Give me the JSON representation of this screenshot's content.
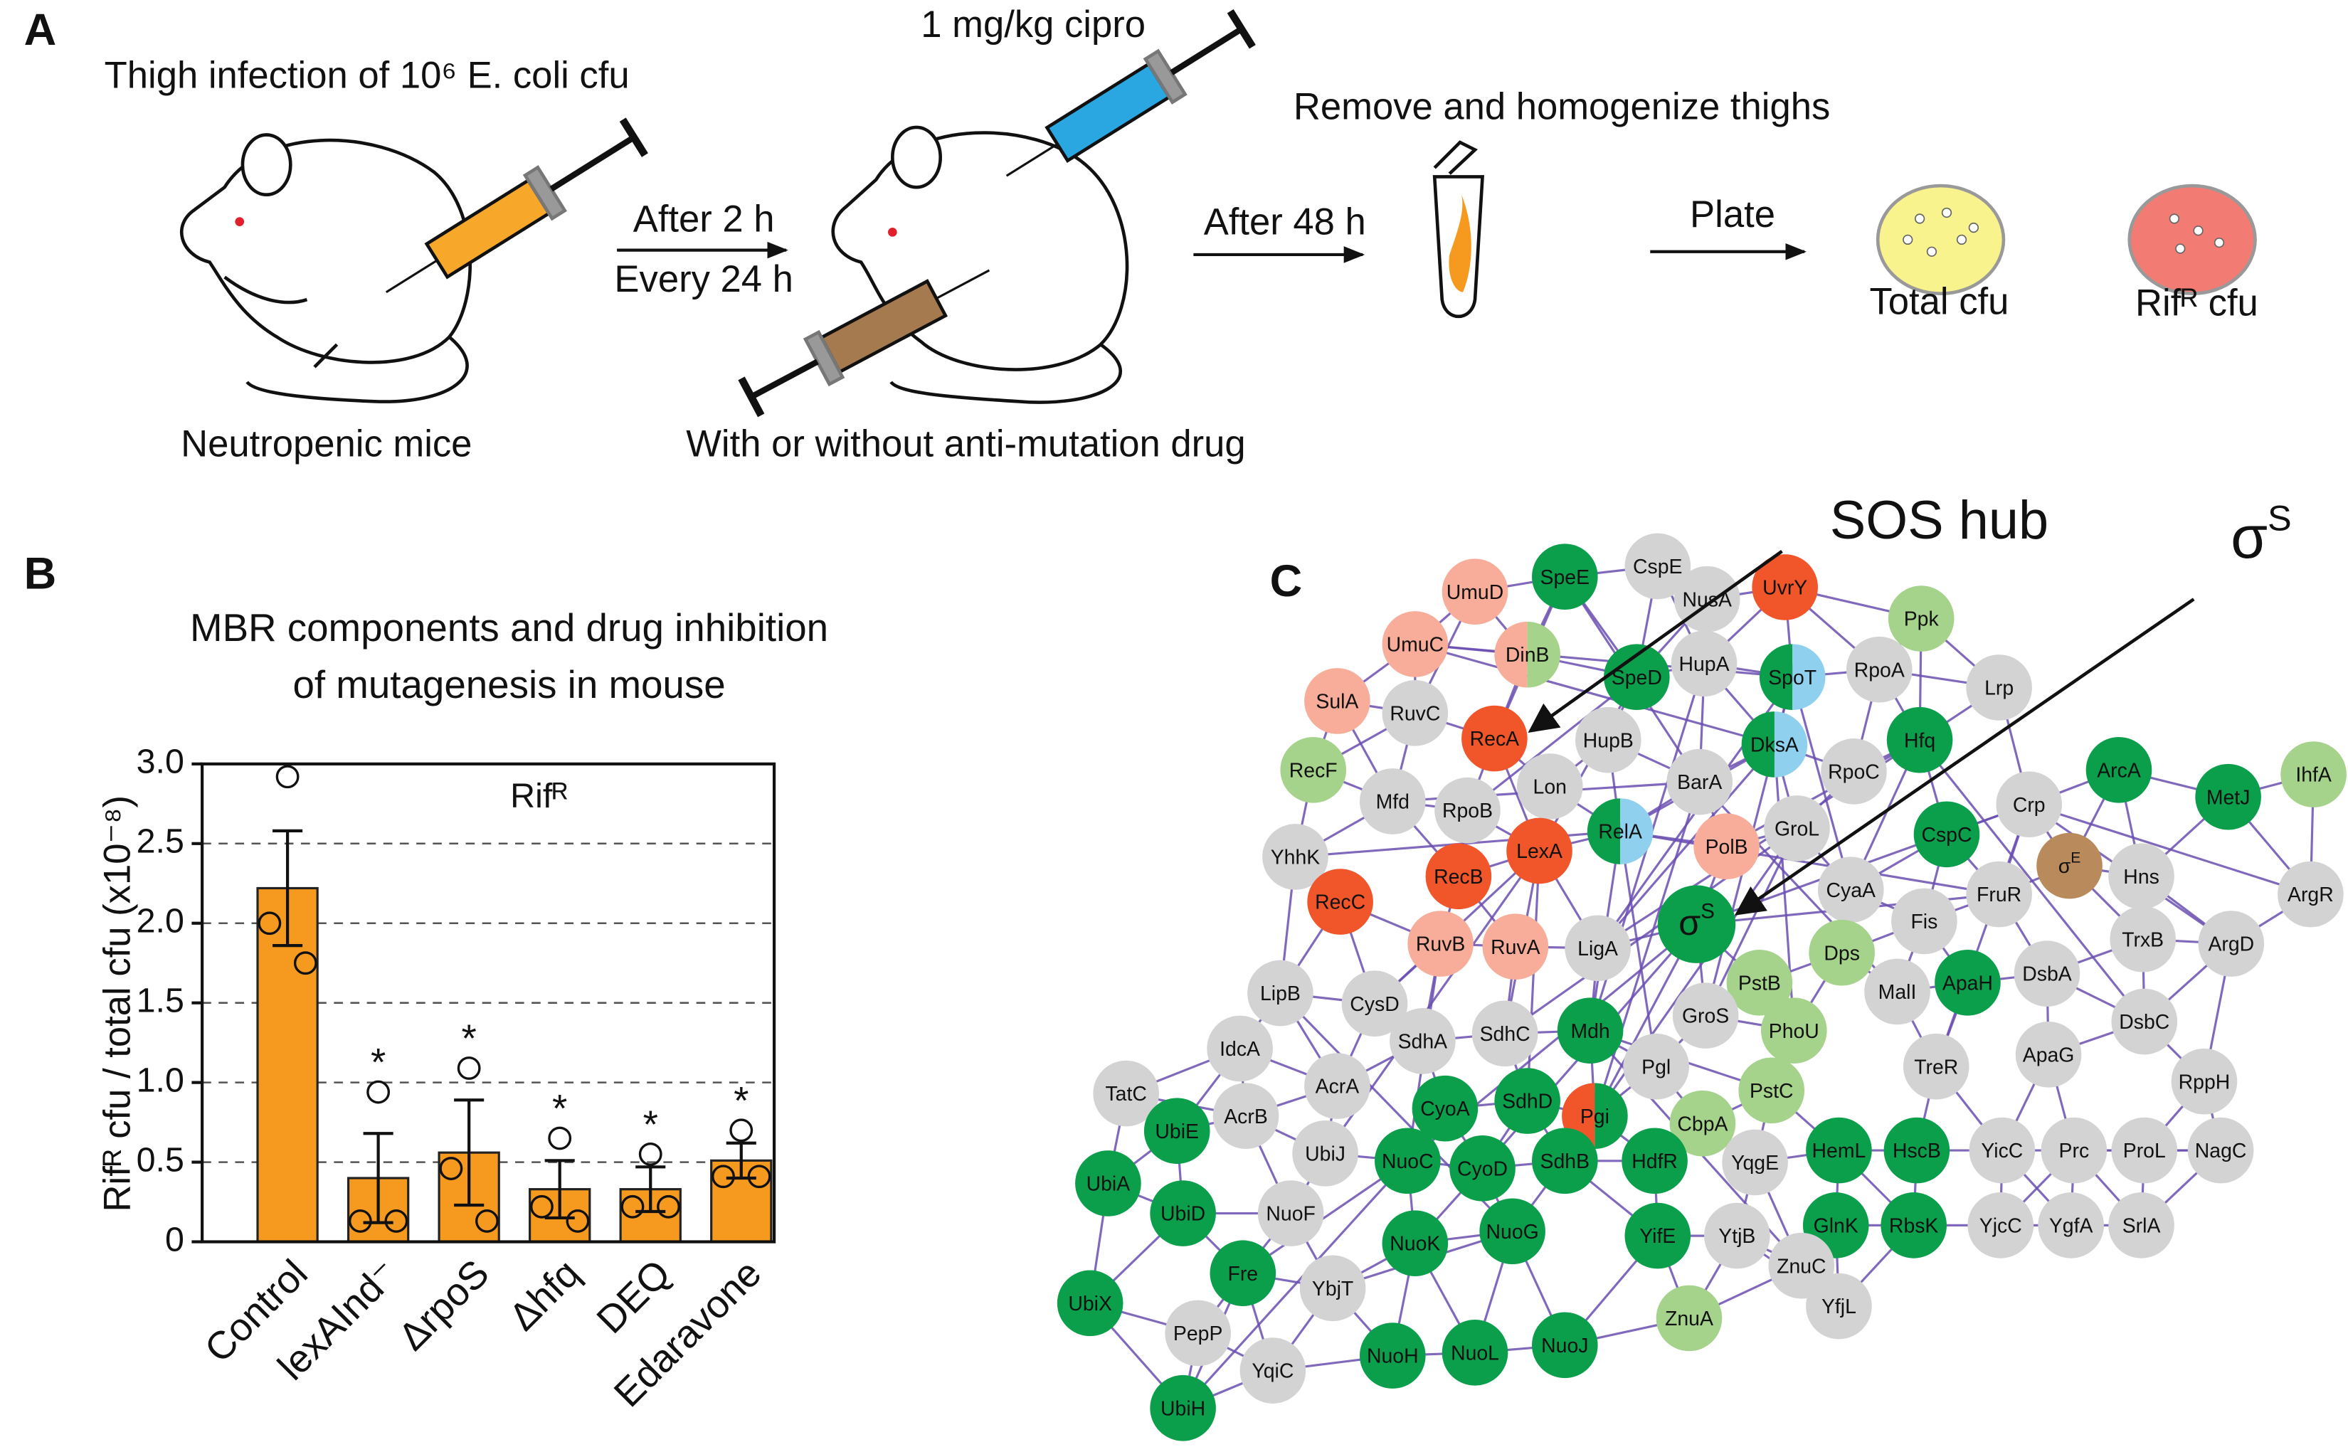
{
  "panel_a": {
    "label": "A",
    "infection": "Thigh infection of 10⁶ E. coli cfu",
    "dose": "1 mg/kg cipro",
    "step1_top": "After 2 h",
    "step1_bottom": "Every 24 h",
    "step2": "After 48 h",
    "homogenize": "Remove and homogenize thighs",
    "plate": "Plate",
    "total": "Total cfu",
    "rifr": "Rifᴿ cfu",
    "mice": "Neutropenic mice",
    "drug": "With or without anti-mutation drug"
  },
  "chart_data": {
    "type": "bar",
    "panel_label": "B",
    "title": [
      "MBR components and drug inhibition",
      "of mutagenesis in mouse"
    ],
    "inner_label": "Rifᴿ",
    "y_label": "Rifᴿ cfu / total cfu (x10⁻⁸)",
    "categories": [
      "Control",
      "lexAInd⁻",
      "ΔrpoS",
      "Δhfq",
      "DEQ",
      "Edaravone"
    ],
    "values": [
      2.22,
      0.4,
      0.56,
      0.33,
      0.33,
      0.51
    ],
    "errors": [
      0.36,
      0.28,
      0.33,
      0.18,
      0.14,
      0.11
    ],
    "points": [
      [
        2.92,
        2.0,
        1.75
      ],
      [
        0.94,
        0.13,
        0.13
      ],
      [
        1.09,
        0.46,
        0.13
      ],
      [
        0.65,
        0.22,
        0.13
      ],
      [
        0.55,
        0.22,
        0.22
      ],
      [
        0.7,
        0.41,
        0.41
      ]
    ],
    "significance": [
      null,
      "*",
      "*",
      "*",
      "*",
      "*"
    ],
    "color": "#f5991f",
    "ylim": [
      0,
      3
    ],
    "yticks": [
      0,
      0.5,
      {
        "value": 1,
        "label": "1.0"
      },
      1.5,
      {
        "value": 2,
        "label": "2.0"
      },
      2.5,
      {
        "value": 3,
        "label": "3.0"
      }
    ],
    "grid": true
  },
  "network": {
    "label": "C",
    "sos_hub": "SOS hub",
    "sigma_s": {
      "text": "σ",
      "sup": "S"
    },
    "nodes": [
      {
        "label": "SpeE",
        "color": "#0b9e4b"
      },
      {
        "label": "CspE",
        "color": "#d3d3d3"
      },
      {
        "label": "NusA",
        "color": "#d3d3d3"
      },
      {
        "label": "UvrY",
        "color": "#f0562a"
      },
      {
        "label": "Ppk",
        "color": "#a5d38b"
      },
      {
        "label": "UmuD",
        "color": "#f7ad9a"
      },
      {
        "label": "UmuC",
        "color": "#f7ad9a"
      },
      {
        "label": "DinB",
        "color": "#f7ad9a",
        "color2": "#a5d38b"
      },
      {
        "label": "HupA",
        "color": "#d3d3d3"
      },
      {
        "label": "SpoT",
        "color": "#0b9e4b",
        "color2": "#8fd0ee"
      },
      {
        "label": "RpoA",
        "color": "#d3d3d3"
      },
      {
        "label": "SulA",
        "color": "#f7ad9a"
      },
      {
        "label": "RuvC",
        "color": "#d3d3d3"
      },
      {
        "label": "SpeD",
        "color": "#0b9e4b"
      },
      {
        "label": "Lrp",
        "color": "#d3d3d3"
      },
      {
        "label": "RecA",
        "color": "#f0562a"
      },
      {
        "label": "HupB",
        "color": "#d3d3d3"
      },
      {
        "label": "DksA",
        "color": "#0b9e4b",
        "color2": "#8fd0ee"
      },
      {
        "label": "Hfq",
        "color": "#0b9e4b"
      },
      {
        "label": "RpoC",
        "color": "#d3d3d3"
      },
      {
        "label": "RecF",
        "color": "#a5d38b"
      },
      {
        "label": "Mfd",
        "color": "#d3d3d3"
      },
      {
        "label": "RpoB",
        "color": "#d3d3d3"
      },
      {
        "label": "Lon",
        "color": "#d3d3d3"
      },
      {
        "label": "BarA",
        "color": "#d3d3d3"
      },
      {
        "label": "ArcA",
        "color": "#0b9e4b"
      },
      {
        "label": "MetJ",
        "color": "#0b9e4b"
      },
      {
        "label": "IhfA",
        "color": "#a5d38b"
      },
      {
        "label": "Crp",
        "color": "#d3d3d3"
      },
      {
        "label": "GroL",
        "color": "#d3d3d3"
      },
      {
        "label": "RelA",
        "color": "#0b9e4b",
        "color2": "#8fd0ee"
      },
      {
        "label": "PolB",
        "color": "#f7ad9a"
      },
      {
        "label": "LexA",
        "color": "#f0562a"
      },
      {
        "label": "YhhK",
        "color": "#d3d3d3"
      },
      {
        "label": "CspC",
        "color": "#0b9e4b"
      },
      {
        "label": "Hns",
        "color": "#d3d3d3"
      },
      {
        "label": "σ",
        "sup": "E",
        "color": "#b98a5c"
      },
      {
        "label": "ArgR",
        "color": "#d3d3d3"
      },
      {
        "label": "RecC",
        "color": "#f0562a"
      },
      {
        "label": "RecB",
        "color": "#f0562a"
      },
      {
        "label": "CyaA",
        "color": "#d3d3d3"
      },
      {
        "label": "FruR",
        "color": "#d3d3d3"
      },
      {
        "label": "Fis",
        "color": "#d3d3d3"
      },
      {
        "label": "σ",
        "sup": "S",
        "color": "#0b9e4b"
      },
      {
        "label": "ArgD",
        "color": "#d3d3d3"
      },
      {
        "label": "RuvB",
        "color": "#f7ad9a"
      },
      {
        "label": "RuvA",
        "color": "#f7ad9a"
      },
      {
        "label": "LigA",
        "color": "#d3d3d3"
      },
      {
        "label": "Dps",
        "color": "#a5d38b"
      },
      {
        "label": "TrxB",
        "color": "#d3d3d3"
      },
      {
        "label": "DsbA",
        "color": "#d3d3d3"
      },
      {
        "label": "LipB",
        "color": "#d3d3d3"
      },
      {
        "label": "CysD",
        "color": "#d3d3d3"
      },
      {
        "label": "PstB",
        "color": "#a5d38b"
      },
      {
        "label": "MalI",
        "color": "#d3d3d3"
      },
      {
        "label": "ApaH",
        "color": "#0b9e4b"
      },
      {
        "label": "GroS",
        "color": "#d3d3d3"
      },
      {
        "label": "SdhC",
        "color": "#d3d3d3"
      },
      {
        "label": "Mdh",
        "color": "#0b9e4b"
      },
      {
        "label": "DsbC",
        "color": "#d3d3d3"
      },
      {
        "label": "IdcA",
        "color": "#d3d3d3"
      },
      {
        "label": "SdhA",
        "color": "#d3d3d3"
      },
      {
        "label": "PhoU",
        "color": "#a5d38b"
      },
      {
        "label": "ApaG",
        "color": "#d3d3d3"
      },
      {
        "label": "Pgl",
        "color": "#d3d3d3"
      },
      {
        "label": "TreR",
        "color": "#d3d3d3"
      },
      {
        "label": "TatC",
        "color": "#d3d3d3"
      },
      {
        "label": "AcrB",
        "color": "#d3d3d3"
      },
      {
        "label": "AcrA",
        "color": "#d3d3d3"
      },
      {
        "label": "PstC",
        "color": "#a5d38b"
      },
      {
        "label": "RppH",
        "color": "#d3d3d3"
      },
      {
        "label": "Pgi",
        "color": "#f0562a",
        "color2": "#0b9e4b"
      },
      {
        "label": "SdhD",
        "color": "#0b9e4b"
      },
      {
        "label": "CyoA",
        "color": "#0b9e4b"
      },
      {
        "label": "CbpA",
        "color": "#a5d38b"
      },
      {
        "label": "UbiE",
        "color": "#0b9e4b"
      },
      {
        "label": "UbiJ",
        "color": "#d3d3d3"
      },
      {
        "label": "NuoF",
        "color": "#d3d3d3"
      },
      {
        "label": "NuoC",
        "color": "#0b9e4b"
      },
      {
        "label": "CyoD",
        "color": "#0b9e4b"
      },
      {
        "label": "SdhB",
        "color": "#0b9e4b"
      },
      {
        "label": "HdfR",
        "color": "#0b9e4b"
      },
      {
        "label": "YqgE",
        "color": "#d3d3d3"
      },
      {
        "label": "HemL",
        "color": "#0b9e4b"
      },
      {
        "label": "HscB",
        "color": "#0b9e4b"
      },
      {
        "label": "YicC",
        "color": "#d3d3d3"
      },
      {
        "label": "Prc",
        "color": "#d3d3d3"
      },
      {
        "label": "ProL",
        "color": "#d3d3d3"
      },
      {
        "label": "NagC",
        "color": "#d3d3d3"
      },
      {
        "label": "UbiA",
        "color": "#0b9e4b"
      },
      {
        "label": "UbiD",
        "color": "#0b9e4b"
      },
      {
        "label": "Fre",
        "color": "#0b9e4b"
      },
      {
        "label": "YifE",
        "color": "#0b9e4b"
      },
      {
        "label": "YtjB",
        "color": "#d3d3d3"
      },
      {
        "label": "GlnK",
        "color": "#0b9e4b"
      },
      {
        "label": "RbsK",
        "color": "#0b9e4b"
      },
      {
        "label": "YjcC",
        "color": "#d3d3d3"
      },
      {
        "label": "YgfA",
        "color": "#d3d3d3"
      },
      {
        "label": "SrlA",
        "color": "#d3d3d3"
      },
      {
        "label": "NuoK",
        "color": "#0b9e4b"
      },
      {
        "label": "NuoG",
        "color": "#0b9e4b"
      },
      {
        "label": "ZnuC",
        "color": "#d3d3d3"
      },
      {
        "label": "UbiX",
        "color": "#0b9e4b"
      },
      {
        "label": "YbjT",
        "color": "#d3d3d3"
      },
      {
        "label": "PepP",
        "color": "#d3d3d3"
      },
      {
        "label": "NuoH",
        "color": "#0b9e4b"
      },
      {
        "label": "NuoL",
        "color": "#0b9e4b"
      },
      {
        "label": "NuoJ",
        "color": "#0b9e4b"
      },
      {
        "label": "ZnuA",
        "color": "#a5d38b"
      },
      {
        "label": "YfjL",
        "color": "#d3d3d3"
      },
      {
        "label": "YqiC",
        "color": "#d3d3d3"
      },
      {
        "label": "UbiH",
        "color": "#0b9e4b"
      }
    ]
  }
}
